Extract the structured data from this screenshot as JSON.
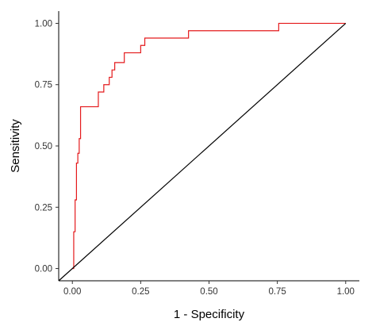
{
  "chart_data": {
    "type": "line",
    "title": "",
    "xlabel": "1 - Specificity",
    "ylabel": "Sensitivity",
    "xlim": [
      -0.05,
      1.05
    ],
    "ylim": [
      -0.05,
      1.05
    ],
    "grid": false,
    "x_ticks": [
      0.0,
      0.25,
      0.5,
      0.75,
      1.0
    ],
    "x_tick_labels": [
      "0.00",
      "0.25",
      "0.50",
      "0.75",
      "1.00"
    ],
    "y_ticks": [
      0.0,
      0.25,
      0.5,
      0.75,
      1.0
    ],
    "y_tick_labels": [
      "0.00",
      "0.25",
      "0.50",
      "0.75",
      "1.00"
    ],
    "series": [
      {
        "color": "#e41a1c",
        "step": true,
        "points": [
          [
            0.0,
            0.0
          ],
          [
            0.005,
            0.15
          ],
          [
            0.01,
            0.28
          ],
          [
            0.015,
            0.43
          ],
          [
            0.02,
            0.47
          ],
          [
            0.025,
            0.53
          ],
          [
            0.03,
            0.66
          ],
          [
            0.095,
            0.72
          ],
          [
            0.115,
            0.75
          ],
          [
            0.135,
            0.78
          ],
          [
            0.145,
            0.81
          ],
          [
            0.155,
            0.84
          ],
          [
            0.19,
            0.88
          ],
          [
            0.25,
            0.91
          ],
          [
            0.265,
            0.94
          ],
          [
            0.425,
            0.97
          ],
          [
            0.755,
            1.0
          ],
          [
            1.0,
            1.0
          ]
        ]
      },
      {
        "color": "#000000",
        "step": false,
        "points": [
          [
            -0.05,
            -0.05
          ],
          [
            1.0,
            1.0
          ]
        ]
      }
    ]
  }
}
